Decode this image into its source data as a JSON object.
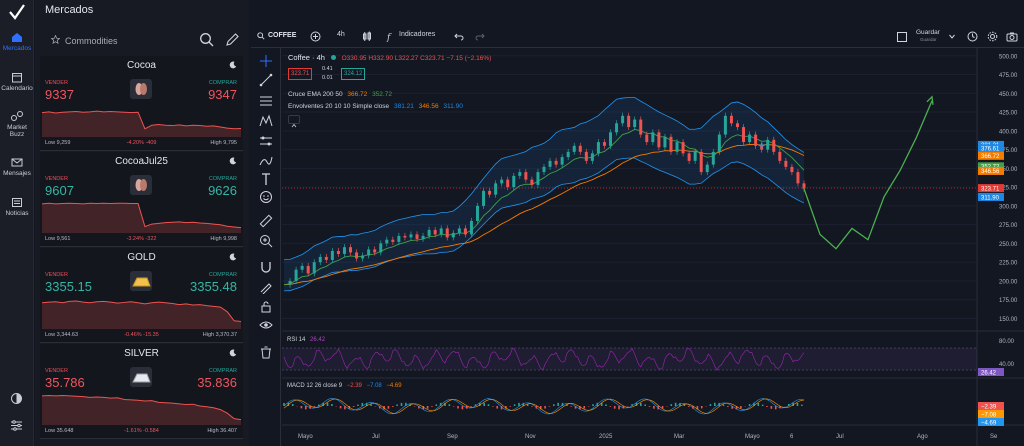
{
  "rail": {
    "items": [
      {
        "label": "Mercados",
        "icon": "home-icon",
        "active": true
      },
      {
        "label": "Calendario",
        "icon": "calendar-icon"
      },
      {
        "label": "Market Buzz",
        "icon": "buzz-icon"
      },
      {
        "label": "Mensajes",
        "icon": "mail-icon"
      },
      {
        "label": "Noticias",
        "icon": "news-icon"
      }
    ],
    "bottom": [
      "theme-icon",
      "settings-sliders-icon"
    ]
  },
  "markets": {
    "title": "Mercados",
    "category": "Commodities",
    "sell_label": "VENDER",
    "buy_label": "COMPRAR",
    "cards": [
      {
        "name": "Cocoa",
        "sell": "9337",
        "buy": "9347",
        "low": "Low 9,259",
        "change": "-4.20%  -409",
        "high": "High 9,795",
        "thumb": "cocoa-bean-icon",
        "spark": [
          0.35,
          0.33,
          0.36,
          0.34,
          0.33,
          0.32,
          0.34,
          0.33,
          0.31,
          0.33,
          0.32,
          0.33,
          0.34,
          0.35,
          0.34,
          0.8,
          0.7,
          0.68,
          0.7,
          0.71,
          0.69,
          0.72,
          0.7,
          0.71,
          0.73,
          0.72,
          0.75,
          0.78,
          0.8,
          0.79
        ]
      },
      {
        "name": "CocoaJul25",
        "sell": "9607",
        "buy": "9626",
        "low": "Low 9,561",
        "change": "-3.24%  -322",
        "high": "High 9,998",
        "thumb": "cocoa-bean-icon",
        "spark": [
          0.22,
          0.2,
          0.22,
          0.21,
          0.2,
          0.21,
          0.22,
          0.2,
          0.21,
          0.2,
          0.21,
          0.2,
          0.2,
          0.21,
          0.21,
          0.85,
          0.78,
          0.76,
          0.74,
          0.73,
          0.72,
          0.74,
          0.73,
          0.75,
          0.76,
          0.78,
          0.8,
          0.84,
          0.86,
          0.88
        ]
      },
      {
        "name": "GOLD",
        "sell": "3355.15",
        "buy": "3355.48",
        "low": "Low 3,344.63",
        "change": "-0.46%  -15.35",
        "high": "High 3,370.37",
        "thumb": "gold-bar-icon",
        "spark": [
          0.3,
          0.28,
          0.27,
          0.3,
          0.26,
          0.25,
          0.28,
          0.3,
          0.27,
          0.26,
          0.28,
          0.31,
          0.29,
          0.27,
          0.3,
          0.33,
          0.3,
          0.28,
          0.3,
          0.32,
          0.35,
          0.33,
          0.36,
          0.35,
          0.38,
          0.4,
          0.42,
          0.55,
          0.8,
          0.82
        ]
      },
      {
        "name": "SILVER",
        "sell": "35.786",
        "buy": "35.836",
        "low": "Low 35.648",
        "change": "-1.61%  -0.584",
        "high": "High 36.407",
        "thumb": "silver-bar-icon",
        "spark": [
          0.22,
          0.21,
          0.22,
          0.21,
          0.22,
          0.23,
          0.24,
          0.26,
          0.25,
          0.26,
          0.28,
          0.27,
          0.32,
          0.33,
          0.34,
          0.36,
          0.35,
          0.4,
          0.41,
          0.42,
          0.44,
          0.46,
          0.45,
          0.5,
          0.52,
          0.55,
          0.6,
          0.7,
          0.85,
          0.88
        ]
      }
    ]
  },
  "topbar": {
    "symbol": "COFFEE",
    "interval": "4h",
    "indicators": "Indicadores",
    "save": "Guardar",
    "saved_sub": "Guardar"
  },
  "chart_data": {
    "type": "line",
    "title": "Coffee · 4h",
    "ohlc": {
      "open": "O330.95",
      "high": "H332.90",
      "low": "L322.27",
      "close": "C323.71",
      "change": "−7.15 (−2.16%)"
    },
    "bid_ask": {
      "bid": "323.71",
      "spread_top": "0.41",
      "spread_bot": "0.01",
      "ask": "324.12"
    },
    "indicators": [
      {
        "name": "Cruce EMA 200 50",
        "values": [
          "366.72",
          "352.72"
        ]
      },
      {
        "name": "Envolventes 20 10 10 Simple close",
        "values": [
          "381.21",
          "346.56",
          "311.90"
        ]
      }
    ],
    "x_ticks": [
      "Mayo",
      "Jul",
      "Sep",
      "Nov",
      "2025",
      "Mar",
      "Mayo",
      "6",
      "Jul",
      "Ago",
      "Se"
    ],
    "y_ticks": [
      "500.00",
      "475.00",
      "450.00",
      "425.00",
      "400.00",
      "375.00",
      "350.00",
      "325.00",
      "300.00",
      "275.00",
      "250.00",
      "225.00",
      "200.00",
      "175.00",
      "150.00"
    ],
    "ylim": [
      140,
      505
    ],
    "price_labels": [
      {
        "value": "381.21",
        "bg": "#1e88e5"
      },
      {
        "value": "376.61",
        "bg": "#1e88e5"
      },
      {
        "value": "366.72",
        "bg": "#f57c00"
      },
      {
        "value": "352.72",
        "bg": "#43a047"
      },
      {
        "value": "346.56",
        "bg": "#f57c00"
      },
      {
        "value": "323.71",
        "bg": "#e53935"
      },
      {
        "value": "311.90",
        "bg": "#1e88e5"
      }
    ],
    "series": [
      {
        "name": "Coffee",
        "values": [
          195,
          200,
          215,
          220,
          210,
          225,
          232,
          228,
          240,
          236,
          245,
          238,
          230,
          234,
          242,
          238,
          250,
          255,
          252,
          260,
          258,
          262,
          256,
          260,
          268,
          262,
          270,
          258,
          264,
          270,
          262,
          280,
          300,
          320,
          315,
          330,
          335,
          325,
          340,
          345,
          335,
          328,
          345,
          352,
          360,
          355,
          365,
          372,
          380,
          372,
          360,
          370,
          385,
          380,
          398,
          410,
          420,
          405,
          415,
          395,
          385,
          398,
          378,
          392,
          372,
          385,
          370,
          360,
          372,
          345,
          355,
          372,
          395,
          420,
          410,
          405,
          385,
          395,
          380,
          375,
          388,
          372,
          360,
          352,
          345,
          330,
          323
        ]
      },
      {
        "name": "Projection",
        "values": [
          323,
          262,
          243,
          270,
          255,
          312,
          347,
          390,
          440
        ]
      }
    ],
    "rsi": {
      "label": "RSI 14",
      "value": "26.42",
      "ticks": [
        "80.00",
        "40.00"
      ]
    },
    "macd": {
      "label": "MACD 12 26 close 9",
      "values": [
        "−2.39",
        "−7.08",
        "−4.69"
      ]
    }
  }
}
